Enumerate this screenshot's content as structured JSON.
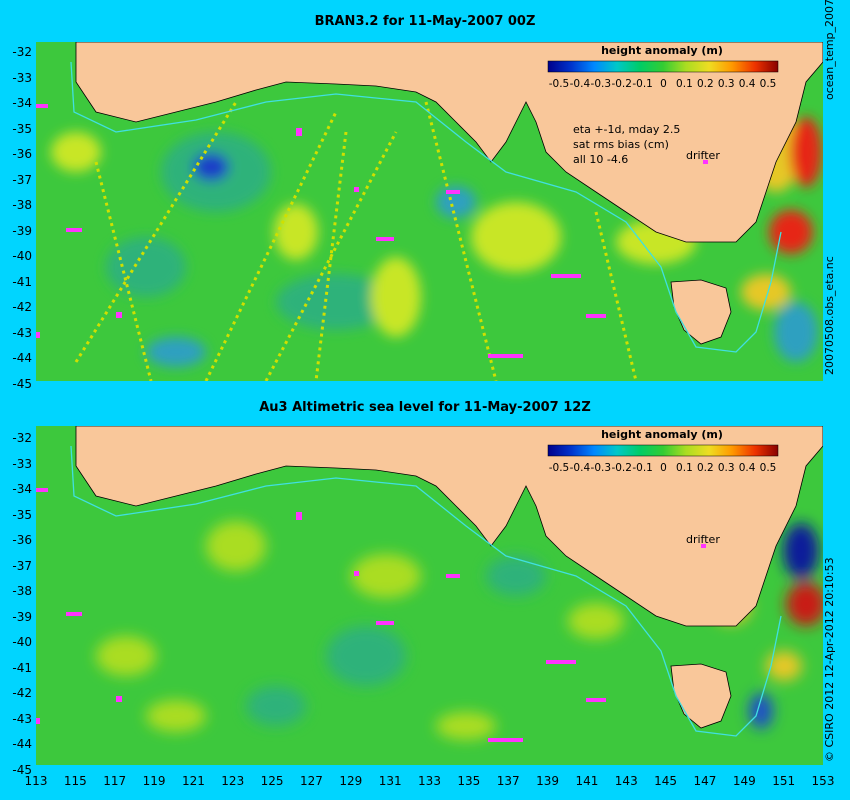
{
  "panels": [
    {
      "title": "BRAN3.2 for 11-May-2007 00Z",
      "annotations": [
        "eta +-1d, mday 2.5",
        "sat rms bias (cm)",
        "all 10 -4.6"
      ],
      "drifter_label": "drifter",
      "colorbar": {
        "title": "height anomaly (m)",
        "ticks": [
          "-0.5",
          "-0.4",
          "-0.3",
          "-0.2",
          "-0.1",
          "0",
          "0.1",
          "0.2",
          "0.3",
          "0.4",
          "0.5"
        ]
      }
    },
    {
      "title": "Au3 Altimetric sea level  for 11-May-2007 12Z",
      "annotations": [],
      "drifter_label": "drifter",
      "colorbar": {
        "title": "height anomaly (m)",
        "ticks": [
          "-0.5",
          "-0.4",
          "-0.3",
          "-0.2",
          "-0.1",
          "0",
          "0.1",
          "0.2",
          "0.3",
          "0.4",
          "0.5"
        ]
      }
    }
  ],
  "y_ticks": [
    "-32",
    "-33",
    "-34",
    "-35",
    "-36",
    "-37",
    "-38",
    "-39",
    "-40",
    "-41",
    "-42",
    "-43",
    "-44",
    "-45"
  ],
  "x_ticks": [
    "113",
    "115",
    "117",
    "119",
    "121",
    "123",
    "125",
    "127",
    "129",
    "131",
    "133",
    "135",
    "137",
    "139",
    "141",
    "143",
    "145",
    "147",
    "149",
    "151",
    "153"
  ],
  "side_text": {
    "top": "ocean_temp_2007",
    "top2": "20070508.obs_eta.nc",
    "bottom": "© CSIRO 2012  12-Apr-2012 20:10:53"
  },
  "colors": {
    "background": "#00d5ff",
    "land": "#f9c79a",
    "sea_base": "#3dc83d",
    "coast_current": "#40e0e0",
    "drifter": "#ff33ff"
  }
}
